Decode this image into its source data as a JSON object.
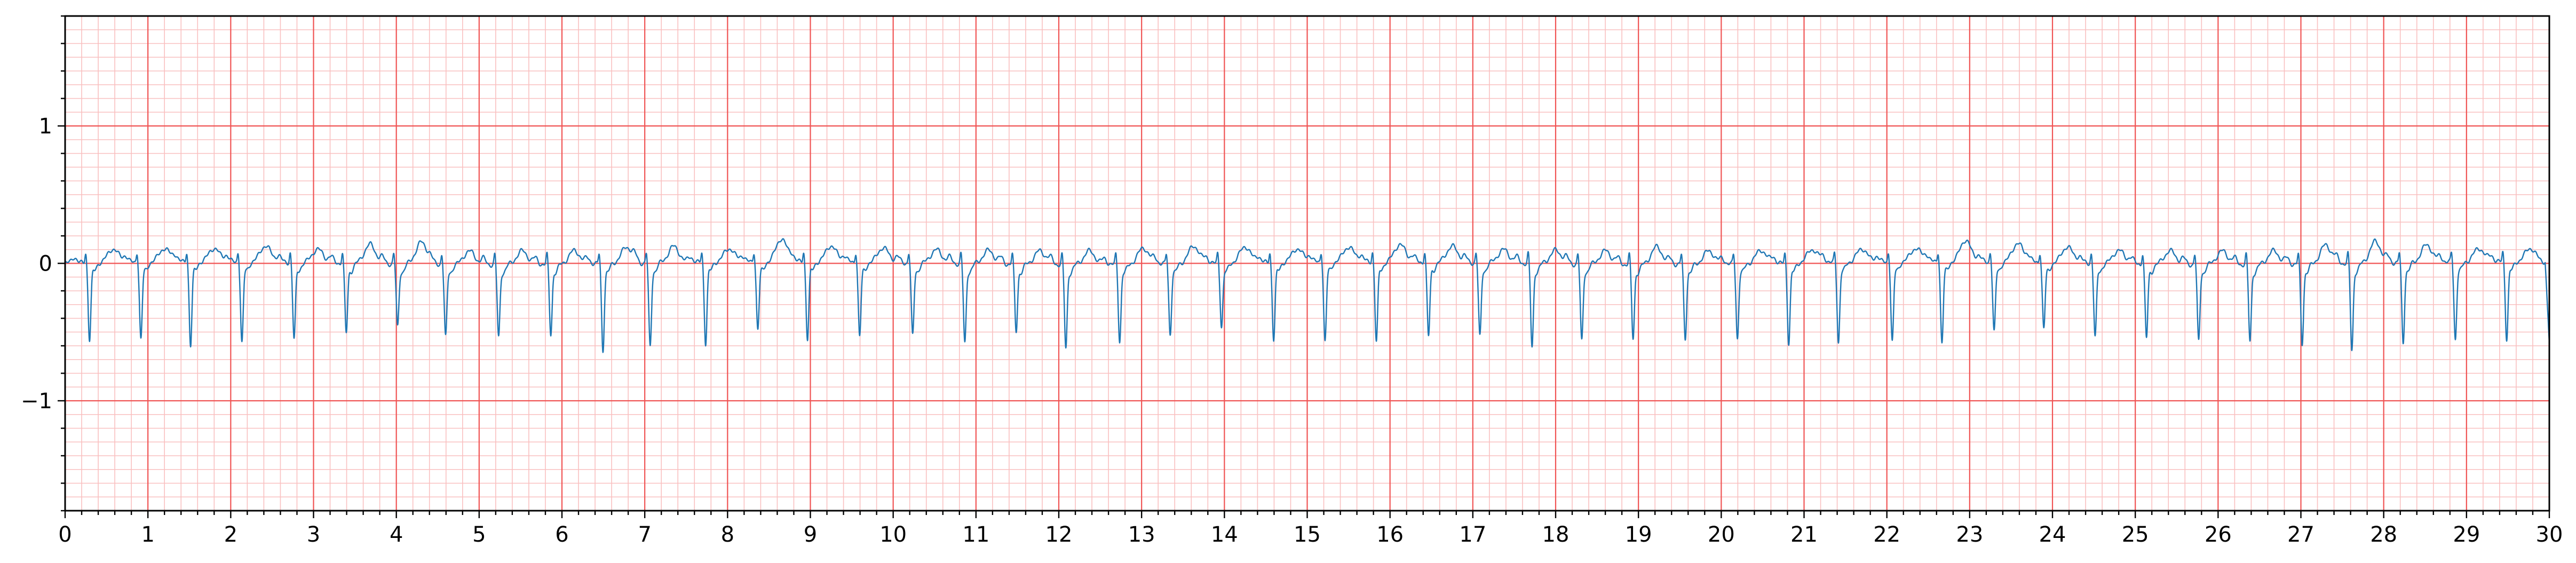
{
  "chart_data": {
    "type": "line",
    "title": "",
    "xlabel": "",
    "ylabel": "",
    "xlim": [
      0,
      30
    ],
    "ylim": [
      -1.8,
      1.8
    ],
    "grid": true,
    "grid_major_x_step": 1,
    "grid_minor_x_step": 0.2,
    "grid_major_y_step": 1,
    "grid_minor_y_step": 0.1,
    "x_ticks": [
      "0",
      "1",
      "2",
      "3",
      "4",
      "5",
      "6",
      "7",
      "8",
      "9",
      "10",
      "11",
      "12",
      "13",
      "14",
      "15",
      "16",
      "17",
      "18",
      "19",
      "20",
      "21",
      "22",
      "23",
      "24",
      "25",
      "26",
      "27",
      "28",
      "29",
      "30"
    ],
    "y_ticks": [
      {
        "value": 1,
        "label": "1"
      },
      {
        "value": 0,
        "label": "0"
      },
      {
        "value": -1,
        "label": "−1"
      }
    ],
    "colors": {
      "trace": "#1f77b4",
      "major_grid": "#f05454",
      "minor_grid": "#f9c0c0",
      "axis": "#000000"
    },
    "series": [
      {
        "beats_t": [
          0.28,
          0.9,
          1.5,
          2.12,
          2.75,
          3.38,
          4.0,
          4.58,
          5.22,
          5.85,
          6.48,
          7.05,
          7.72,
          8.35,
          8.95,
          9.58,
          10.22,
          10.85,
          11.47,
          12.07,
          12.72,
          13.33,
          13.95,
          14.58,
          15.2,
          15.82,
          16.45,
          17.07,
          17.7,
          18.3,
          18.92,
          19.55,
          20.18,
          20.8,
          21.4,
          22.05,
          22.65,
          23.28,
          23.88,
          24.5,
          25.12,
          25.75,
          26.37,
          27.0,
          27.6,
          28.22,
          28.85,
          29.47
        ],
        "s_depth": [
          0.55,
          0.55,
          0.6,
          0.58,
          0.55,
          0.5,
          0.45,
          0.52,
          0.52,
          0.5,
          0.62,
          0.6,
          0.58,
          0.48,
          0.55,
          0.53,
          0.52,
          0.57,
          0.48,
          0.6,
          0.55,
          0.5,
          0.45,
          0.55,
          0.57,
          0.57,
          0.53,
          0.53,
          0.6,
          0.55,
          0.53,
          0.53,
          0.53,
          0.57,
          0.57,
          0.57,
          0.58,
          0.5,
          0.47,
          0.53,
          0.53,
          0.55,
          0.55,
          0.57,
          0.62,
          0.57,
          0.55,
          0.55
        ],
        "t_amp": [
          0.1,
          0.1,
          0.1,
          0.12,
          0.1,
          0.14,
          0.16,
          0.1,
          0.1,
          0.1,
          0.12,
          0.12,
          0.1,
          0.17,
          0.12,
          0.11,
          0.1,
          0.1,
          0.1,
          0.1,
          0.12,
          0.13,
          0.12,
          0.1,
          0.11,
          0.13,
          0.12,
          0.1,
          0.1,
          0.1,
          0.13,
          0.1,
          0.1,
          0.1,
          0.1,
          0.1,
          0.16,
          0.14,
          0.12,
          0.1,
          0.1,
          0.1,
          0.1,
          0.14,
          0.16,
          0.13,
          0.1,
          0.1
        ],
        "end_value": -0.58
      }
    ]
  }
}
